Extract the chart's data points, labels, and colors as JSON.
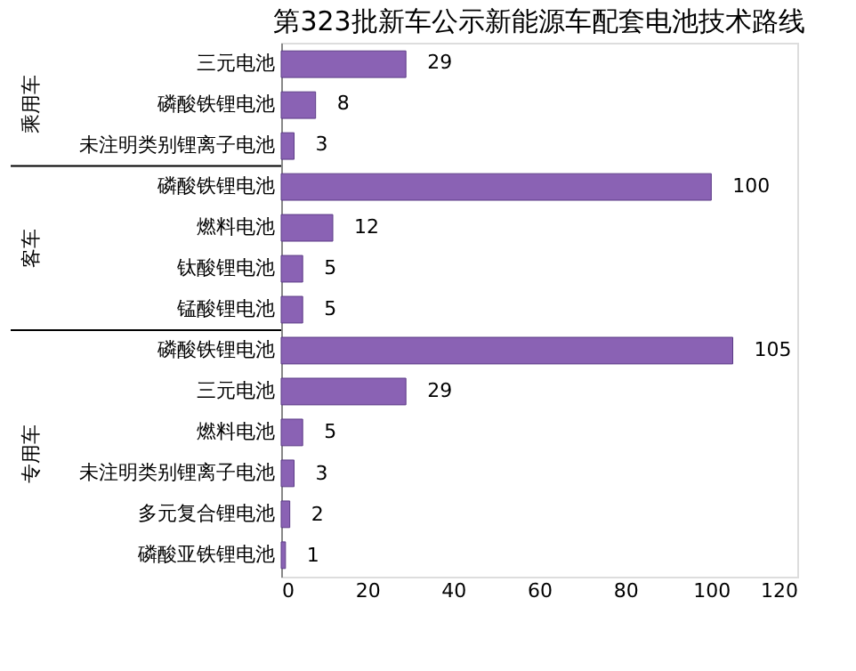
{
  "chart_data": {
    "type": "bar",
    "orientation": "horizontal",
    "title": "第323批新车公示新能源车配套电池技术路线",
    "categories": [
      "三元电池",
      "磷酸铁锂电池",
      "未注明类别锂离子电池",
      "磷酸铁锂电池",
      "燃料电池",
      "钛酸锂电池",
      "锰酸锂电池",
      "磷酸铁锂电池",
      "三元电池",
      "燃料电池",
      "未注明类别锂离子电池",
      "多元复合锂电池",
      "磷酸亚铁锂电池"
    ],
    "values": [
      29,
      8,
      3,
      100,
      12,
      5,
      5,
      105,
      29,
      5,
      3,
      2,
      1
    ],
    "color": "#8a62b4",
    "xlim": [
      0,
      120
    ],
    "xticks": [
      0,
      20,
      40,
      60,
      80,
      100,
      120
    ],
    "data_labels": true,
    "grid": false,
    "annotations": [
      "乘用车",
      "客车",
      "专用车"
    ]
  }
}
